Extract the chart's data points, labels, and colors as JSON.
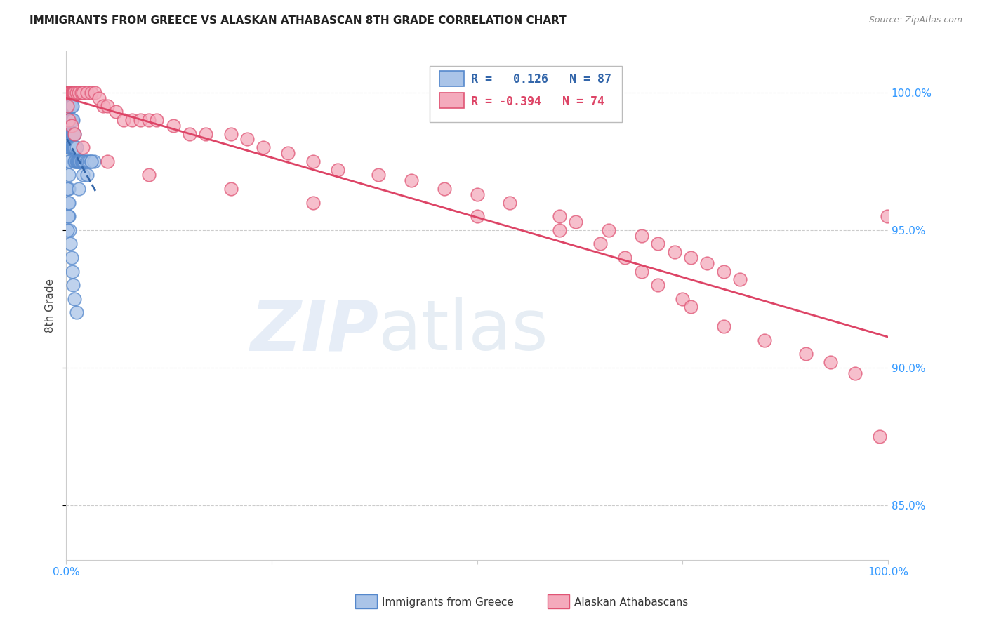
{
  "title": "IMMIGRANTS FROM GREECE VS ALASKAN ATHABASCAN 8TH GRADE CORRELATION CHART",
  "source": "Source: ZipAtlas.com",
  "ylabel": "8th Grade",
  "y_ticks": [
    85.0,
    90.0,
    95.0,
    100.0
  ],
  "y_tick_labels": [
    "85.0%",
    "90.0%",
    "95.0%",
    "100.0%"
  ],
  "blue_R": 0.126,
  "blue_N": 87,
  "pink_R": -0.394,
  "pink_N": 74,
  "blue_color": "#aac4e8",
  "pink_color": "#f4aabc",
  "blue_edge_color": "#5588cc",
  "pink_edge_color": "#e05575",
  "blue_line_color": "#3366aa",
  "pink_line_color": "#dd4466",
  "legend_label_blue": "Immigrants from Greece",
  "legend_label_pink": "Alaskan Athabascans",
  "title_color": "#222222",
  "source_color": "#888888",
  "tick_color": "#3399ff",
  "grid_color": "#cccccc",
  "ylim_min": 83.0,
  "ylim_max": 101.5,
  "blue_scatter_x": [
    0.001,
    0.001,
    0.001,
    0.001,
    0.001,
    0.002,
    0.002,
    0.002,
    0.002,
    0.002,
    0.002,
    0.002,
    0.002,
    0.002,
    0.003,
    0.003,
    0.003,
    0.003,
    0.003,
    0.003,
    0.003,
    0.003,
    0.003,
    0.003,
    0.004,
    0.004,
    0.004,
    0.004,
    0.004,
    0.004,
    0.005,
    0.005,
    0.005,
    0.005,
    0.005,
    0.006,
    0.006,
    0.006,
    0.006,
    0.007,
    0.007,
    0.007,
    0.007,
    0.008,
    0.008,
    0.008,
    0.009,
    0.009,
    0.01,
    0.01,
    0.01,
    0.011,
    0.011,
    0.012,
    0.012,
    0.013,
    0.014,
    0.015,
    0.016,
    0.017,
    0.018,
    0.019,
    0.02,
    0.021,
    0.022,
    0.024,
    0.026,
    0.028,
    0.03,
    0.034,
    0.001,
    0.002,
    0.003,
    0.004,
    0.005,
    0.006,
    0.007,
    0.008,
    0.01,
    0.012,
    0.001,
    0.002,
    0.003,
    0.015,
    0.02,
    0.025,
    0.03
  ],
  "blue_scatter_y": [
    100.0,
    100.0,
    100.0,
    100.0,
    100.0,
    100.0,
    100.0,
    100.0,
    100.0,
    100.0,
    99.5,
    99.3,
    99.0,
    98.8,
    100.0,
    100.0,
    99.8,
    99.5,
    99.0,
    98.5,
    98.0,
    97.5,
    97.0,
    96.5,
    100.0,
    99.5,
    99.0,
    98.5,
    98.0,
    97.5,
    100.0,
    99.5,
    99.0,
    98.5,
    98.0,
    99.5,
    99.0,
    98.5,
    98.0,
    99.5,
    99.0,
    98.5,
    98.0,
    99.0,
    98.5,
    98.0,
    98.5,
    98.0,
    98.5,
    98.0,
    97.5,
    98.0,
    97.5,
    98.0,
    97.5,
    97.5,
    97.5,
    97.5,
    97.5,
    97.5,
    97.5,
    97.5,
    97.5,
    97.5,
    97.5,
    97.5,
    97.5,
    97.5,
    97.5,
    97.5,
    96.5,
    96.0,
    95.5,
    95.0,
    94.5,
    94.0,
    93.5,
    93.0,
    92.5,
    92.0,
    95.0,
    95.5,
    96.0,
    96.5,
    97.0,
    97.0,
    97.5
  ],
  "pink_scatter_x": [
    0.001,
    0.002,
    0.003,
    0.004,
    0.005,
    0.006,
    0.007,
    0.008,
    0.009,
    0.01,
    0.012,
    0.015,
    0.018,
    0.02,
    0.025,
    0.03,
    0.035,
    0.04,
    0.045,
    0.05,
    0.06,
    0.07,
    0.08,
    0.09,
    0.1,
    0.11,
    0.13,
    0.15,
    0.17,
    0.2,
    0.22,
    0.24,
    0.27,
    0.3,
    0.33,
    0.38,
    0.42,
    0.46,
    0.5,
    0.54,
    0.6,
    0.62,
    0.66,
    0.7,
    0.72,
    0.74,
    0.76,
    0.78,
    0.8,
    0.82,
    0.001,
    0.003,
    0.006,
    0.01,
    0.02,
    0.05,
    0.1,
    0.2,
    0.3,
    0.5,
    0.6,
    0.65,
    0.68,
    0.7,
    0.72,
    0.75,
    0.76,
    0.8,
    0.85,
    0.9,
    0.93,
    0.96,
    0.99,
    0.999
  ],
  "pink_scatter_y": [
    100.0,
    100.0,
    100.0,
    100.0,
    100.0,
    100.0,
    100.0,
    100.0,
    100.0,
    100.0,
    100.0,
    100.0,
    100.0,
    100.0,
    100.0,
    100.0,
    100.0,
    99.8,
    99.5,
    99.5,
    99.3,
    99.0,
    99.0,
    99.0,
    99.0,
    99.0,
    98.8,
    98.5,
    98.5,
    98.5,
    98.3,
    98.0,
    97.8,
    97.5,
    97.2,
    97.0,
    96.8,
    96.5,
    96.3,
    96.0,
    95.5,
    95.3,
    95.0,
    94.8,
    94.5,
    94.2,
    94.0,
    93.8,
    93.5,
    93.2,
    99.5,
    99.0,
    98.8,
    98.5,
    98.0,
    97.5,
    97.0,
    96.5,
    96.0,
    95.5,
    95.0,
    94.5,
    94.0,
    93.5,
    93.0,
    92.5,
    92.2,
    91.5,
    91.0,
    90.5,
    90.2,
    89.8,
    87.5,
    95.5
  ]
}
